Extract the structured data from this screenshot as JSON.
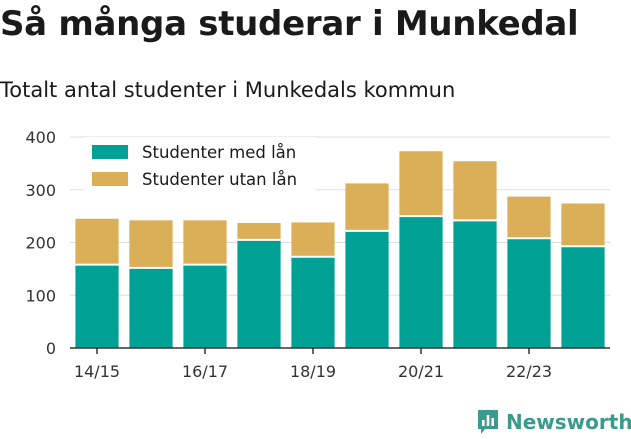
{
  "header": {
    "title": "Så många studerar i Munkedal",
    "subtitle": "Totalt antal studenter i Munkedals kommun"
  },
  "brand": {
    "name": "Newsworthy",
    "icon": "newsworthy-bars-icon",
    "color": "#3a9a8c"
  },
  "chart_data": {
    "type": "bar",
    "stacked": true,
    "categories": [
      "14/15",
      "15/16",
      "16/17",
      "17/18",
      "18/19",
      "19/20",
      "20/21",
      "21/22",
      "22/23",
      "23/24"
    ],
    "x_tick_labels": [
      "14/15",
      "16/17",
      "18/19",
      "20/21",
      "22/23"
    ],
    "series": [
      {
        "name": "Studenter med lån",
        "color": "#00a195",
        "values": [
          158,
          152,
          158,
          205,
          173,
          222,
          250,
          242,
          208,
          193
        ]
      },
      {
        "name": "Studenter utan lån",
        "color": "#dbae58",
        "values": [
          87,
          90,
          84,
          32,
          65,
          90,
          123,
          112,
          79,
          81
        ]
      }
    ],
    "ylim": [
      0,
      400
    ],
    "yticks": [
      0,
      100,
      200,
      300,
      400
    ],
    "grid": true,
    "legend_position": "top-left"
  }
}
